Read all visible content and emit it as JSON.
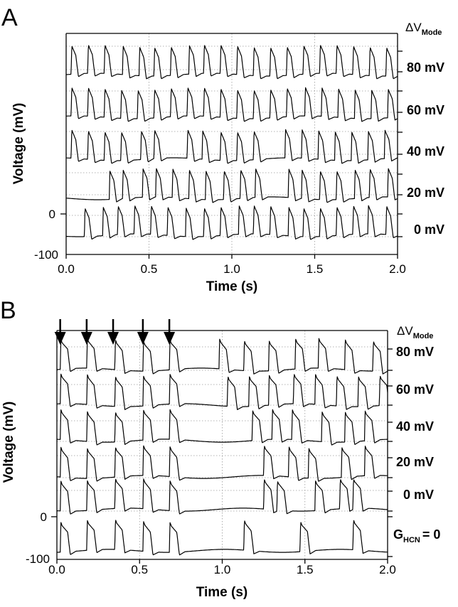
{
  "chart_data": [
    {
      "panel": "A",
      "type": "line",
      "xlabel": "Time (s)",
      "ylabel": "Voltage (mV)",
      "xlim": [
        0,
        2
      ],
      "x_ticks": [
        "0.0",
        "0.5",
        "1.0",
        "1.5",
        "2.0"
      ],
      "y_ticks": [
        "0",
        "-100"
      ],
      "header": {
        "prefix": "ΔV",
        "subscript": "Mode"
      },
      "grid": "dotted",
      "series": [
        {
          "name": "80 mV",
          "spike_times": [
            0.03,
            0.13,
            0.23,
            0.34,
            0.44,
            0.53,
            0.63,
            0.74,
            0.83,
            0.93,
            1.03,
            1.13,
            1.23,
            1.33,
            1.43,
            1.53,
            1.63,
            1.73,
            1.83,
            1.93
          ]
        },
        {
          "name": "60 mV",
          "spike_times": [
            0.03,
            0.13,
            0.23,
            0.33,
            0.43,
            0.53,
            0.63,
            0.73,
            0.83,
            0.93,
            1.03,
            1.13,
            1.23,
            1.33,
            1.44,
            1.54,
            1.64,
            1.74,
            1.84,
            1.94
          ]
        },
        {
          "name": "40 mV",
          "spike_times": [
            0.03,
            0.13,
            0.23,
            0.33,
            0.45,
            0.53,
            0.73,
            0.82,
            0.93,
            1.03,
            1.13,
            1.32,
            1.42,
            1.52,
            1.62,
            1.72,
            1.82,
            1.92
          ]
        },
        {
          "name": "20 mV",
          "spike_times": [
            0.26,
            0.34,
            0.46,
            0.54,
            0.64,
            0.74,
            0.84,
            0.95,
            1.05,
            1.14,
            1.34,
            1.42,
            1.53,
            1.63,
            1.74,
            1.83,
            1.94
          ]
        },
        {
          "name": "0 mV",
          "spike_times": [
            0.11,
            0.22,
            0.31,
            0.41,
            0.51,
            0.61,
            0.72,
            0.83,
            0.93,
            1.04,
            1.13,
            1.23,
            1.34,
            1.43,
            1.53,
            1.63,
            1.73,
            1.82,
            1.93
          ]
        }
      ]
    },
    {
      "panel": "B",
      "type": "line",
      "xlabel": "Time (s)",
      "ylabel": "Voltage (mV)",
      "xlim": [
        0,
        2
      ],
      "x_ticks": [
        "0.0",
        "0.5",
        "1.0",
        "1.5",
        "2.0"
      ],
      "y_ticks": [
        "0",
        "-100"
      ],
      "header": {
        "prefix": "ΔV",
        "subscript": "Mode"
      },
      "grid": "dotted",
      "stimulus_arrows_s": [
        0.02,
        0.18,
        0.34,
        0.52,
        0.68
      ],
      "series": [
        {
          "name": "80 mV",
          "spike_times": [
            0.02,
            0.18,
            0.35,
            0.52,
            0.68,
            0.98,
            1.13,
            1.28,
            1.44,
            1.58,
            1.74,
            1.91
          ]
        },
        {
          "name": "60 mV",
          "spike_times": [
            0.02,
            0.18,
            0.35,
            0.52,
            0.68,
            1.03,
            1.16,
            1.28,
            1.43,
            1.56,
            1.69,
            1.82,
            1.95
          ]
        },
        {
          "name": "40 mV",
          "spike_times": [
            0.02,
            0.18,
            0.35,
            0.52,
            0.68,
            1.18,
            1.3,
            1.42,
            1.6,
            1.74,
            1.86
          ]
        },
        {
          "name": "20 mV",
          "spike_times": [
            0.02,
            0.18,
            0.35,
            0.52,
            0.68,
            1.25,
            1.4,
            1.52,
            1.72,
            1.86
          ]
        },
        {
          "name": "0 mV",
          "spike_times": [
            0.02,
            0.18,
            0.35,
            0.52,
            0.68,
            1.25,
            1.33,
            1.56,
            1.71,
            1.79
          ]
        },
        {
          "name": "G",
          "subscript": "HCN",
          "suffix": "= 0",
          "spike_times": [
            0.02,
            0.18,
            0.35,
            0.52,
            0.68,
            1.13,
            1.47,
            1.79
          ]
        }
      ]
    }
  ]
}
